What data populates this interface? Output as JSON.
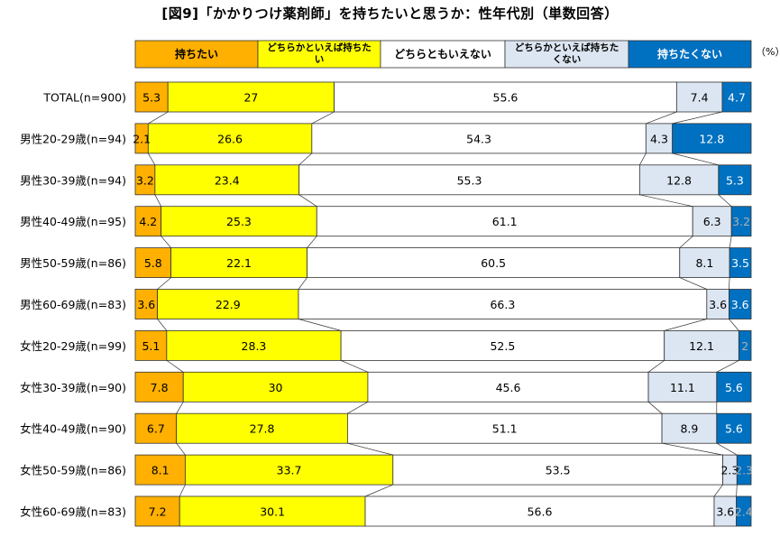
{
  "chart_data": {
    "type": "bar",
    "stacked": true,
    "orientation": "horizontal",
    "normalized_100": true,
    "title": "[図9]「かかりつけ薬剤師」を持ちたいと思うか：性年代別（単数回答）",
    "unit": "（%）",
    "categories": [
      "TOTAL(n=900)",
      "男性20-29歳(n=94)",
      "男性30-39歳(n=94)",
      "男性40-49歳(n=95)",
      "男性50-59歳(n=86)",
      "男性60-69歳(n=83)",
      "女性20-29歳(n=99)",
      "女性30-39歳(n=90)",
      "女性40-49歳(n=90)",
      "女性50-59歳(n=86)",
      "女性60-69歳(n=83)"
    ],
    "series": [
      {
        "name": "持ちたい",
        "color": "#FFB000",
        "values": [
          5.3,
          2.1,
          3.2,
          4.2,
          5.8,
          3.6,
          5.1,
          7.8,
          6.7,
          8.1,
          7.2
        ]
      },
      {
        "name": "どちらかといえば持ちたい",
        "color": "#FFFF00",
        "values": [
          27,
          26.6,
          23.4,
          25.3,
          22.1,
          22.9,
          28.3,
          30,
          27.8,
          33.7,
          30.1
        ]
      },
      {
        "name": "どちらともいえない",
        "color": "#FFFFFF",
        "values": [
          55.6,
          54.3,
          55.3,
          61.1,
          60.5,
          66.3,
          52.5,
          45.6,
          51.1,
          53.5,
          56.6
        ]
      },
      {
        "name": "どちらかといえば持ちたくない",
        "color": "#DCE6F2",
        "values": [
          7.4,
          4.3,
          12.8,
          6.3,
          8.1,
          3.6,
          12.1,
          11.1,
          8.9,
          2.3,
          3.6
        ]
      },
      {
        "name": "持ちたくない",
        "color": "#0070C0",
        "values": [
          4.7,
          12.8,
          5.3,
          3.2,
          3.5,
          3.6,
          2,
          5.6,
          5.6,
          2.3,
          2.4
        ]
      }
    ],
    "legend_position": "top",
    "grid": false
  }
}
